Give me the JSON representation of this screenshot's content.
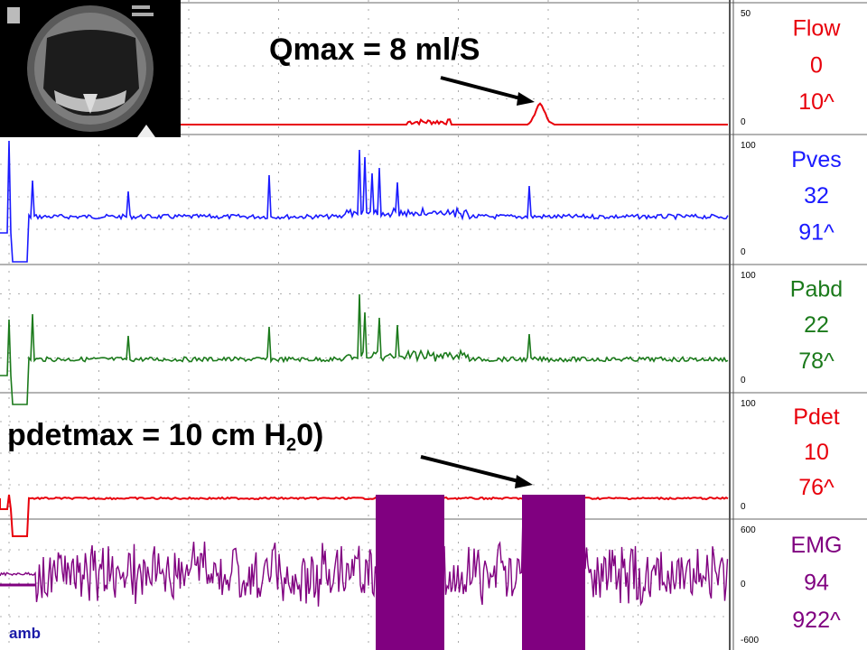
{
  "annotations": {
    "qmax": "Qmax = 8 ml/S",
    "pdetmax_prefix": "pdetmax = 10 cm H",
    "pdetmax_sub": "2",
    "pdetmax_suffix": "0)",
    "footer": "amb"
  },
  "chart_data": {
    "type": "line",
    "channels": [
      {
        "name": "Flow",
        "current": "0",
        "max": "10^",
        "scale_top": "50",
        "scale_bottom": "0",
        "color": "#e8000b"
      },
      {
        "name": "Pves",
        "current": "32",
        "max": "91^",
        "scale_top": "100",
        "scale_bottom": "0",
        "color": "#1a1aff"
      },
      {
        "name": "Pabd",
        "current": "22",
        "max": "78^",
        "scale_top": "100",
        "scale_bottom": "0",
        "color": "#1b7a1b"
      },
      {
        "name": "Pdet",
        "current": "10",
        "max": "76^",
        "scale_top": "100",
        "scale_bottom": "0",
        "color": "#e8000b"
      },
      {
        "name": "EMG",
        "current": "94",
        "max": "922^",
        "scale_top": "600",
        "scale_mid": "0",
        "scale_bottom": "-600",
        "color": "#800080"
      }
    ],
    "grid": true
  }
}
